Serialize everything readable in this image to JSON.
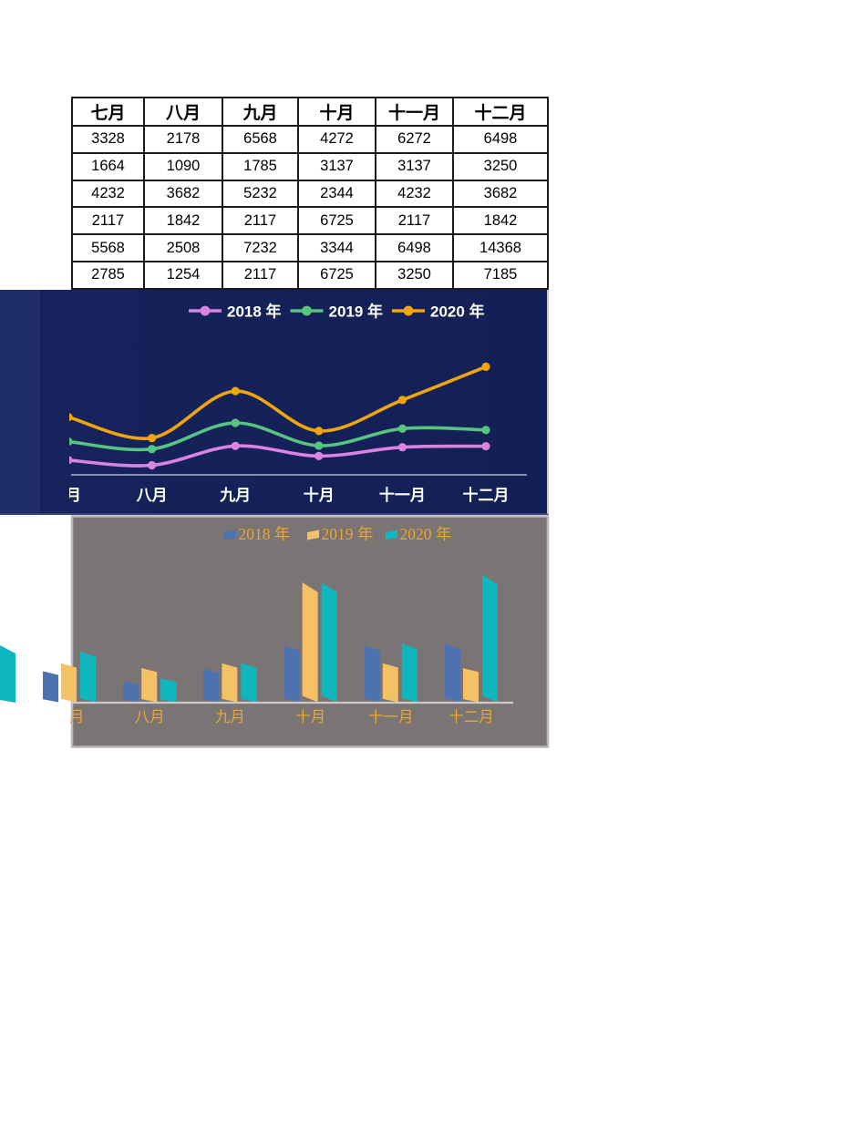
{
  "table": {
    "headers": [
      "七月",
      "八月",
      "九月",
      "十月",
      "十一月",
      "十二月"
    ],
    "rows": [
      [
        "3328",
        "2178",
        "6568",
        "4272",
        "6272",
        "6498"
      ],
      [
        "1664",
        "1090",
        "1785",
        "3137",
        "3137",
        "3250"
      ],
      [
        "4232",
        "3682",
        "5232",
        "2344",
        "4232",
        "3682"
      ],
      [
        "2117",
        "1842",
        "2117",
        "6725",
        "2117",
        "1842"
      ],
      [
        "5568",
        "2508",
        "7232",
        "3344",
        "6498",
        "14368"
      ],
      [
        "2785",
        "1254",
        "2117",
        "6725",
        "3250",
        "7185"
      ]
    ]
  },
  "chart_data": [
    {
      "type": "line",
      "subtype": "stacked-smooth-line-with-markers",
      "title": "",
      "categories": [
        "七月",
        "八月",
        "九月",
        "十月",
        "十一月",
        "十二月"
      ],
      "series": [
        {
          "name": "2018 年",
          "values": [
            3328,
            2178,
            6568,
            4272,
            6272,
            6498
          ],
          "color": "#d984de"
        },
        {
          "name": "2019 年",
          "values": [
            4232,
            3682,
            5232,
            2344,
            4232,
            3682
          ],
          "color": "#57c47f"
        },
        {
          "name": "2020 年",
          "values": [
            5568,
            2508,
            7232,
            3344,
            6498,
            14368
          ],
          "color": "#f0a50a"
        }
      ],
      "stacking": "stacked",
      "legend_position": "top",
      "grid": false,
      "ylim": [
        0,
        30000
      ],
      "background": "#16235c",
      "text_color": "#ffffff",
      "axis_color": "#a9b3cf",
      "note": "first category label partially clipped at left edge of view"
    },
    {
      "type": "bar",
      "subtype": "3d-clustered",
      "title": "",
      "categories": [
        "七月",
        "八月",
        "九月",
        "十月",
        "十一月",
        "十二月"
      ],
      "series": [
        {
          "name": "2018 年",
          "values": [
            1664,
            1090,
            1785,
            3137,
            3137,
            3250
          ],
          "color": "#4d72b0"
        },
        {
          "name": "2019 年",
          "values": [
            2117,
            1842,
            2117,
            6725,
            2117,
            1842
          ],
          "color": "#f4c164"
        },
        {
          "name": "2020 年",
          "values": [
            2785,
            1254,
            2117,
            6725,
            3250,
            7185
          ],
          "color": "#10b6bd"
        }
      ],
      "legend_position": "top",
      "grid": false,
      "ylim": [
        0,
        8000
      ],
      "background": "#7a7474",
      "text_color": "#eaa62e",
      "axis_color": "#cfc9c9",
      "note": "first category cluster spills left of gray plot area; stray teal bar fragment of an off-screen chart at far left"
    }
  ]
}
